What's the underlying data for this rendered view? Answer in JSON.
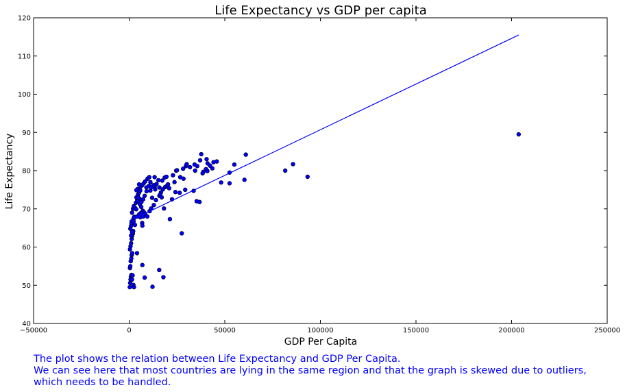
{
  "chart_data": {
    "type": "scatter",
    "title": "Life Expectancy vs GDP per capita",
    "xlabel": "GDP Per Capita",
    "ylabel": "Life Expectancy",
    "xlim": [
      -50000,
      250000
    ],
    "ylim": [
      40,
      120
    ],
    "xticks": [
      -50000,
      0,
      50000,
      100000,
      150000,
      200000,
      250000
    ],
    "yticks": [
      40,
      50,
      60,
      70,
      80,
      90,
      100,
      110,
      120
    ],
    "grid": false,
    "colors": {
      "points": "#0000ff",
      "point_edge": "#000033",
      "trendline": "#0000ff",
      "caption": "#0000ff"
    },
    "series": [
      {
        "kind": "points",
        "values": [
          [
            300,
            49.5
          ],
          [
            500,
            50.6
          ],
          [
            700,
            51.5
          ],
          [
            900,
            52.2
          ],
          [
            1200,
            52.7
          ],
          [
            1500,
            51.5
          ],
          [
            1800,
            52.6
          ],
          [
            2200,
            50.1
          ],
          [
            2500,
            49.5
          ],
          [
            400,
            54.5
          ],
          [
            600,
            55.0
          ],
          [
            800,
            56.3
          ],
          [
            1100,
            57.0
          ],
          [
            1300,
            57.9
          ],
          [
            1600,
            58.4
          ],
          [
            400,
            59.4
          ],
          [
            700,
            60.2
          ],
          [
            1000,
            61.0
          ],
          [
            1300,
            62.1
          ],
          [
            1500,
            62.9
          ],
          [
            1900,
            63.5
          ],
          [
            2100,
            64.2
          ],
          [
            600,
            64.8
          ],
          [
            900,
            65.5
          ],
          [
            1200,
            66.3
          ],
          [
            1700,
            66.9
          ],
          [
            2300,
            67.4
          ],
          [
            1000,
            63.0
          ],
          [
            1500,
            63.9
          ],
          [
            2600,
            67.9
          ],
          [
            1500,
            69.0
          ],
          [
            2000,
            70.0
          ],
          [
            2400,
            70.7
          ],
          [
            3000,
            70.3
          ],
          [
            3500,
            71.6
          ],
          [
            4200,
            72.3
          ],
          [
            3800,
            73.0
          ],
          [
            4600,
            73.7
          ],
          [
            5100,
            74.2
          ],
          [
            5800,
            74.8
          ],
          [
            4400,
            75.2
          ],
          [
            6000,
            75.8
          ],
          [
            6800,
            76.2
          ],
          [
            7600,
            76.7
          ],
          [
            8400,
            77.2
          ],
          [
            9600,
            77.9
          ],
          [
            10500,
            78.3
          ],
          [
            5200,
            76.4
          ],
          [
            3800,
            74.9
          ],
          [
            4600,
            72.0
          ],
          [
            5600,
            71.2
          ],
          [
            6300,
            70.5
          ],
          [
            7100,
            69.5
          ],
          [
            7900,
            69.0
          ],
          [
            6000,
            68.4
          ],
          [
            8400,
            68.6
          ],
          [
            9500,
            68.0
          ],
          [
            10700,
            69.4
          ],
          [
            11500,
            70.1
          ],
          [
            12900,
            71.0
          ],
          [
            14000,
            72.3
          ],
          [
            15800,
            73.4
          ],
          [
            16600,
            74.3
          ],
          [
            17600,
            75.1
          ],
          [
            18800,
            75.7
          ],
          [
            19700,
            76.0
          ],
          [
            17300,
            77.4
          ],
          [
            18600,
            78.2
          ],
          [
            19500,
            78.4
          ],
          [
            12000,
            72.9
          ],
          [
            11100,
            74.8
          ],
          [
            13300,
            75.8
          ],
          [
            14300,
            76.5
          ],
          [
            15300,
            77.5
          ],
          [
            13300,
            78.3
          ],
          [
            15800,
            75.6
          ],
          [
            16200,
            73.7
          ],
          [
            17000,
            73.0
          ],
          [
            9000,
            75.6
          ],
          [
            10300,
            76.0
          ],
          [
            11100,
            77.0
          ],
          [
            12700,
            76.2
          ],
          [
            13600,
            75.1
          ],
          [
            11500,
            75.6
          ],
          [
            9100,
            74.6
          ],
          [
            8100,
            73.4
          ],
          [
            7300,
            72.5
          ],
          [
            6400,
            71.8
          ],
          [
            5500,
            72.6
          ],
          [
            4800,
            72.9
          ],
          [
            3700,
            69.9
          ],
          [
            4000,
            68.0
          ],
          [
            5800,
            67.8
          ],
          [
            6800,
            66.3
          ],
          [
            6900,
            65.6
          ],
          [
            3000,
            65.8
          ],
          [
            2300,
            66.7
          ],
          [
            5300,
            68.6
          ],
          [
            6100,
            68.9
          ],
          [
            7400,
            68.0
          ],
          [
            4100,
            58.4
          ],
          [
            6900,
            55.3
          ],
          [
            8100,
            52.0
          ],
          [
            12200,
            49.6
          ],
          [
            15700,
            54.0
          ],
          [
            17900,
            52.1
          ],
          [
            18200,
            70.1
          ],
          [
            21300,
            67.3
          ],
          [
            22400,
            72.5
          ],
          [
            24200,
            74.4
          ],
          [
            26400,
            74.2
          ],
          [
            29300,
            75.0
          ],
          [
            22900,
            78.8
          ],
          [
            23700,
            77.0
          ],
          [
            24600,
            80.0
          ],
          [
            26700,
            78.3
          ],
          [
            28400,
            77.9
          ],
          [
            28200,
            80.5
          ],
          [
            29700,
            81.2
          ],
          [
            31800,
            80.9
          ],
          [
            34500,
            80.0
          ],
          [
            34200,
            81.6
          ],
          [
            35600,
            81.2
          ],
          [
            37100,
            82.7
          ],
          [
            37700,
            84.3
          ],
          [
            38800,
            79.7
          ],
          [
            40200,
            80.4
          ],
          [
            41000,
            81.9
          ],
          [
            40500,
            83.0
          ],
          [
            42300,
            81.3
          ],
          [
            44100,
            82.2
          ],
          [
            45800,
            82.4
          ],
          [
            38400,
            79.3
          ],
          [
            40900,
            79.9
          ],
          [
            43500,
            80.6
          ],
          [
            33700,
            74.7
          ],
          [
            35300,
            72.0
          ],
          [
            36800,
            71.8
          ],
          [
            27500,
            63.6
          ],
          [
            48100,
            76.9
          ],
          [
            52500,
            79.5
          ],
          [
            52500,
            76.7
          ],
          [
            55000,
            81.6
          ],
          [
            60300,
            77.6
          ],
          [
            61000,
            84.2
          ],
          [
            81600,
            80.0
          ],
          [
            85700,
            81.7
          ],
          [
            93300,
            78.4
          ],
          [
            203700,
            89.5
          ],
          [
            25000,
            80.1
          ],
          [
            30100,
            81.7
          ],
          [
            20300,
            76.4
          ],
          [
            20900,
            75.4
          ]
        ]
      },
      {
        "kind": "trendline",
        "from": [
          0,
          66.8
        ],
        "to": [
          203700,
          115.5
        ]
      }
    ]
  },
  "caption": {
    "line1": "The plot shows the relation between Life Expectancy and GDP Per Capita.",
    "line2": "We can see here that most countries are lying in the same region and that the graph is skewed due to outliers,",
    "line3": "which needs to be handled."
  }
}
